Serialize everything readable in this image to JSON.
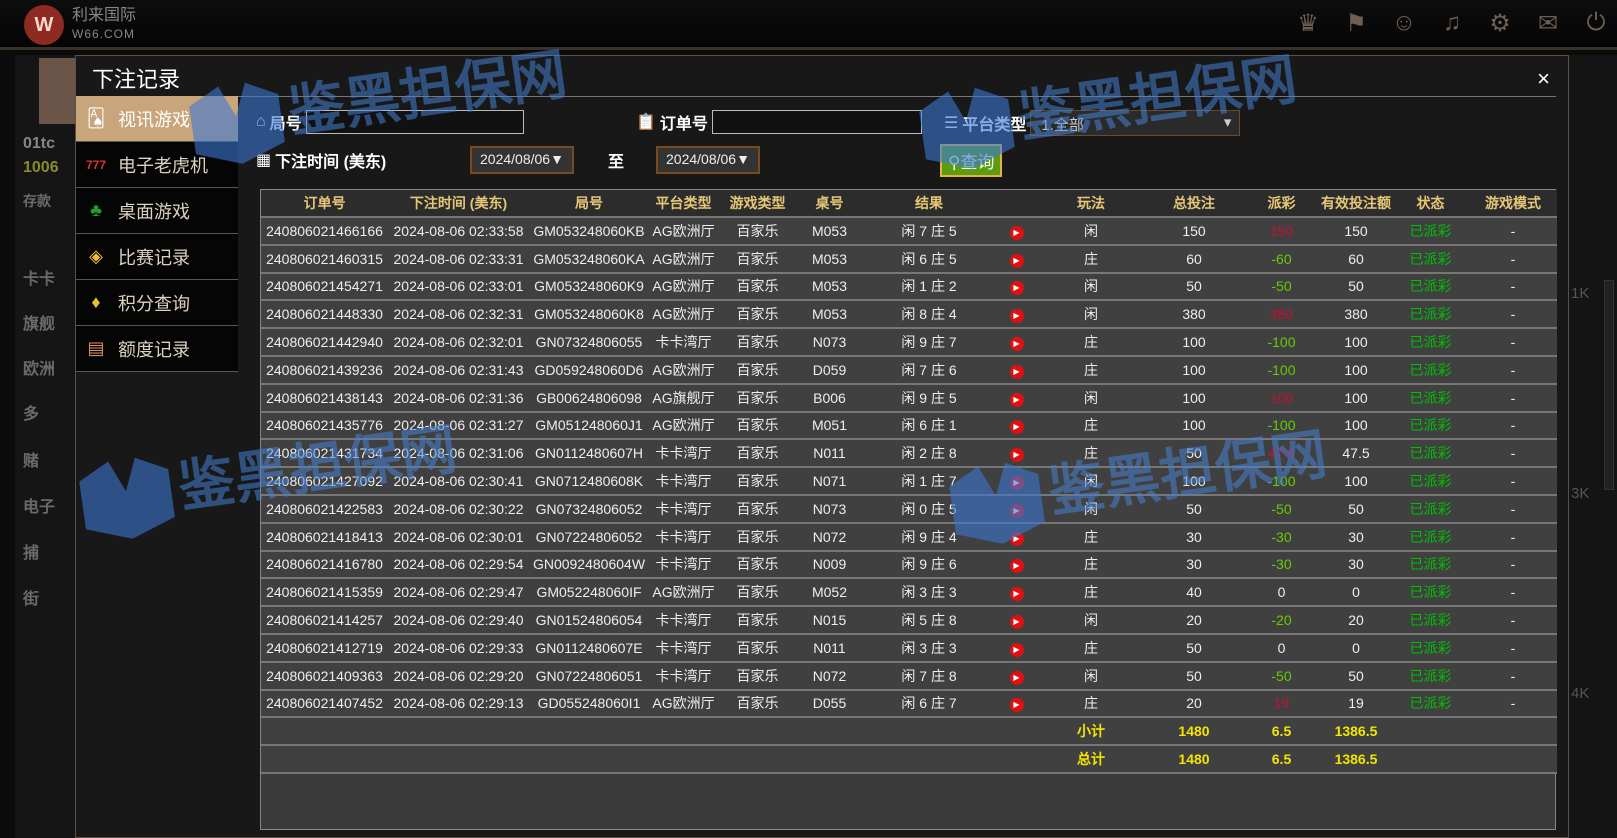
{
  "app": {
    "brand": "利来国际",
    "domain": "W66.COM",
    "logo": "W"
  },
  "topbar_icons": [
    "vip-icon",
    "flag-icon",
    "customer-service-icon",
    "music-icon",
    "gear-icon",
    "chat-icon",
    "power-icon"
  ],
  "lobby_bg": {
    "user": "01tc",
    "balance": "1006",
    "deposit": "存款",
    "items": [
      "卡卡",
      "旗舰",
      "欧洲",
      "多",
      "赌",
      "电子",
      "捕",
      "街"
    ],
    "right": [
      "1K",
      "3K",
      "4K"
    ]
  },
  "modal": {
    "title": "下注记录",
    "close": "×"
  },
  "menu": [
    {
      "label": "视讯游戏",
      "icon": "poker-cards-icon",
      "active": true
    },
    {
      "label": "电子老虎机",
      "icon": "slot-777-icon"
    },
    {
      "label": "桌面游戏",
      "icon": "chips-icon"
    },
    {
      "label": "比赛记录",
      "icon": "ticket-icon"
    },
    {
      "label": "积分查询",
      "icon": "diamond-icon"
    },
    {
      "label": "额度记录",
      "icon": "document-icon"
    }
  ],
  "filters": {
    "round_label": "局号",
    "round_value": "",
    "order_label": "订单号",
    "order_value": "",
    "platform_label": "平台类型",
    "platform_value": "1.全部",
    "time_label": "下注时间 (美东)",
    "date_from": "2024/08/06▼",
    "to_label": "至",
    "date_to": "2024/08/06▼",
    "query": "查询"
  },
  "table": {
    "headers": [
      "订单号",
      "下注时间 (美东)",
      "局号",
      "平台类型",
      "游戏类型",
      "桌号",
      "结果",
      "",
      "玩法",
      "总投注",
      "派彩",
      "有效投注额",
      "状态",
      "游戏模式"
    ],
    "rows": [
      [
        "240806021466166",
        "2024-08-06 02:33:58",
        "GM053248060KB",
        "AG欧洲厅",
        "百家乐",
        "M053",
        "闲 7 庄 5",
        "闲",
        "150",
        "150",
        "150",
        "已派彩",
        "-"
      ],
      [
        "240806021460315",
        "2024-08-06 02:33:31",
        "GM053248060KA",
        "AG欧洲厅",
        "百家乐",
        "M053",
        "闲 6 庄 5",
        "庄",
        "60",
        "-60",
        "60",
        "已派彩",
        "-"
      ],
      [
        "240806021454271",
        "2024-08-06 02:33:01",
        "GM053248060K9",
        "AG欧洲厅",
        "百家乐",
        "M053",
        "闲 1 庄 2",
        "闲",
        "50",
        "-50",
        "50",
        "已派彩",
        "-"
      ],
      [
        "240806021448330",
        "2024-08-06 02:32:31",
        "GM053248060K8",
        "AG欧洲厅",
        "百家乐",
        "M053",
        "闲 8 庄 4",
        "闲",
        "380",
        "380",
        "380",
        "已派彩",
        "-"
      ],
      [
        "240806021442940",
        "2024-08-06 02:32:01",
        "GN07324806055",
        "卡卡湾厅",
        "百家乐",
        "N073",
        "闲 9 庄 7",
        "庄",
        "100",
        "-100",
        "100",
        "已派彩",
        "-"
      ],
      [
        "240806021439236",
        "2024-08-06 02:31:43",
        "GD059248060D6",
        "AG欧洲厅",
        "百家乐",
        "D059",
        "闲 7 庄 6",
        "庄",
        "100",
        "-100",
        "100",
        "已派彩",
        "-"
      ],
      [
        "240806021438143",
        "2024-08-06 02:31:36",
        "GB00624806098",
        "AG旗舰厅",
        "百家乐",
        "B006",
        "闲 9 庄 5",
        "闲",
        "100",
        "100",
        "100",
        "已派彩",
        "-"
      ],
      [
        "240806021435776",
        "2024-08-06 02:31:27",
        "GM051248060J1",
        "AG欧洲厅",
        "百家乐",
        "M051",
        "闲 6 庄 1",
        "庄",
        "100",
        "-100",
        "100",
        "已派彩",
        "-"
      ],
      [
        "240806021431734",
        "2024-08-06 02:31:06",
        "GN0112480607H",
        "卡卡湾厅",
        "百家乐",
        "N011",
        "闲 2 庄 8",
        "庄",
        "50",
        "47.5",
        "47.5",
        "已派彩",
        "-"
      ],
      [
        "240806021427092",
        "2024-08-06 02:30:41",
        "GN0712480608K",
        "卡卡湾厅",
        "百家乐",
        "N071",
        "闲 1 庄 7",
        "闲",
        "100",
        "-100",
        "100",
        "已派彩",
        "-"
      ],
      [
        "240806021422583",
        "2024-08-06 02:30:22",
        "GN07324806052",
        "卡卡湾厅",
        "百家乐",
        "N073",
        "闲 0 庄 5",
        "闲",
        "50",
        "-50",
        "50",
        "已派彩",
        "-"
      ],
      [
        "240806021418413",
        "2024-08-06 02:30:01",
        "GN07224806052",
        "卡卡湾厅",
        "百家乐",
        "N072",
        "闲 9 庄 4",
        "庄",
        "30",
        "-30",
        "30",
        "已派彩",
        "-"
      ],
      [
        "240806021416780",
        "2024-08-06 02:29:54",
        "GN0092480604W",
        "卡卡湾厅",
        "百家乐",
        "N009",
        "闲 9 庄 6",
        "庄",
        "30",
        "-30",
        "30",
        "已派彩",
        "-"
      ],
      [
        "240806021415359",
        "2024-08-06 02:29:47",
        "GM052248060IF",
        "AG欧洲厅",
        "百家乐",
        "M052",
        "闲 3 庄 3",
        "庄",
        "40",
        "0",
        "0",
        "已派彩",
        "-"
      ],
      [
        "240806021414257",
        "2024-08-06 02:29:40",
        "GN01524806054",
        "卡卡湾厅",
        "百家乐",
        "N015",
        "闲 5 庄 8",
        "闲",
        "20",
        "-20",
        "20",
        "已派彩",
        "-"
      ],
      [
        "240806021412719",
        "2024-08-06 02:29:33",
        "GN0112480607E",
        "卡卡湾厅",
        "百家乐",
        "N011",
        "闲 3 庄 3",
        "庄",
        "50",
        "0",
        "0",
        "已派彩",
        "-"
      ],
      [
        "240806021409363",
        "2024-08-06 02:29:20",
        "GN07224806051",
        "卡卡湾厅",
        "百家乐",
        "N072",
        "闲 7 庄 8",
        "闲",
        "50",
        "-50",
        "50",
        "已派彩",
        "-"
      ],
      [
        "240806021407452",
        "2024-08-06 02:29:13",
        "GD055248060I1",
        "AG欧洲厅",
        "百家乐",
        "D055",
        "闲 6 庄 7",
        "庄",
        "20",
        "19",
        "19",
        "已派彩",
        "-"
      ]
    ],
    "subtotal": {
      "label": "小计",
      "total_bet": "1480",
      "payout": "6.5",
      "valid_bet": "1386.5"
    },
    "total": {
      "label": "总计",
      "total_bet": "1480",
      "payout": "6.5",
      "valid_bet": "1386.5"
    }
  },
  "colors": {
    "win": "#c8102e",
    "loss": "#66cc00",
    "status": "#00c000",
    "header": "#e6c777",
    "sum": "#f2e600"
  },
  "watermark": "鉴黑担保网"
}
